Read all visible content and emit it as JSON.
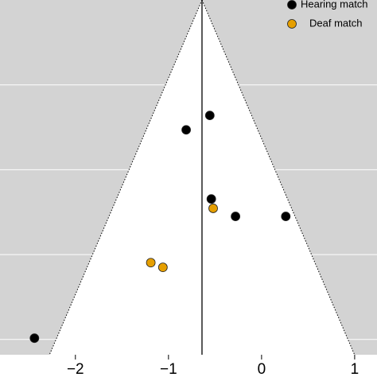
{
  "chart_data": {
    "type": "funnel",
    "summary_estimate": -0.64,
    "funnel_z": 1.96,
    "xlim": [
      -2.81,
      1.24
    ],
    "xticks": [
      {
        "value": -2,
        "label": "−2"
      },
      {
        "value": -1,
        "label": "−1"
      },
      0,
      1
    ],
    "ylim": [
      0,
      0.836
    ],
    "yticks": [
      0.2,
      0.4,
      0.6,
      0.8
    ],
    "y_reversed": true,
    "grid": true,
    "legend": "top-right",
    "series": [
      {
        "name": "Hearing match",
        "color": "#000000",
        "x": [
          -0.556,
          -0.81,
          -0.54,
          -0.28,
          0.26,
          -2.44
        ],
        "values": [
          0.272,
          0.306,
          0.469,
          0.51,
          0.51,
          0.797
        ]
      },
      {
        "name": "Deaf match",
        "color": "#e69f00",
        "x": [
          -0.52,
          -1.19,
          -1.06
        ],
        "values": [
          0.491,
          0.619,
          0.63
        ]
      }
    ]
  }
}
